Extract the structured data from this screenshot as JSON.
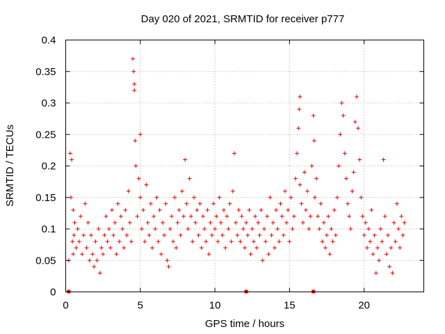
{
  "chart_data": {
    "type": "scatter",
    "title": "Day 020 of 2021, SRMTID for receiver p777",
    "xlabel": "GPS time / hours",
    "ylabel": "SRMTID / TECUs",
    "xlim": [
      0,
      24
    ],
    "ylim": [
      0,
      0.4
    ],
    "x_ticks": [
      0,
      5,
      10,
      15,
      20
    ],
    "x_tick_labels": [
      "0",
      "5",
      "10",
      "15",
      "20"
    ],
    "y_ticks": [
      0,
      0.05,
      0.1,
      0.15,
      0.2,
      0.25,
      0.3,
      0.35,
      0.4
    ],
    "y_tick_labels": [
      "0",
      "0.05",
      "0.1",
      "0.15",
      "0.2",
      "0.25",
      "0.3",
      "0.35",
      "0.4"
    ],
    "grid": true,
    "marker": "+",
    "color": "#e00000",
    "baseline_markers_x": [
      0.2,
      12.1,
      16.6
    ],
    "series": [
      {
        "name": "SRMTID",
        "x": [
          0.2,
          0.3,
          0.35,
          0.4,
          0.45,
          0.5,
          0.5,
          0.55,
          0.6,
          0.7,
          0.8,
          0.9,
          1.0,
          1.1,
          1.2,
          1.3,
          1.4,
          1.5,
          1.6,
          1.7,
          1.8,
          1.9,
          2.0,
          2.1,
          2.2,
          2.3,
          2.4,
          2.5,
          2.6,
          2.7,
          2.8,
          2.9,
          3.0,
          3.1,
          3.2,
          3.3,
          3.4,
          3.5,
          3.6,
          3.7,
          3.8,
          3.9,
          4.0,
          4.1,
          4.2,
          4.3,
          4.4,
          4.5,
          4.55,
          4.6,
          4.6,
          4.65,
          4.7,
          4.8,
          4.9,
          5.0,
          5.0,
          5.1,
          5.2,
          5.3,
          5.4,
          5.5,
          5.6,
          5.7,
          5.8,
          5.9,
          6.0,
          6.1,
          6.2,
          6.3,
          6.4,
          6.5,
          6.6,
          6.7,
          6.8,
          6.9,
          7.0,
          7.1,
          7.2,
          7.3,
          7.4,
          7.5,
          7.6,
          7.7,
          7.8,
          7.9,
          8.0,
          8.1,
          8.2,
          8.3,
          8.4,
          8.5,
          8.6,
          8.7,
          8.8,
          8.9,
          9.0,
          9.1,
          9.2,
          9.3,
          9.4,
          9.5,
          9.6,
          9.7,
          9.8,
          9.9,
          10.0,
          10.1,
          10.2,
          10.3,
          10.4,
          10.5,
          10.6,
          10.7,
          10.8,
          10.9,
          11.0,
          11.1,
          11.2,
          11.3,
          11.4,
          11.5,
          11.6,
          11.7,
          11.8,
          11.9,
          12.0,
          12.1,
          12.2,
          12.3,
          12.4,
          12.5,
          12.6,
          12.7,
          12.8,
          12.9,
          13.0,
          13.1,
          13.2,
          13.3,
          13.4,
          13.5,
          13.6,
          13.7,
          13.8,
          13.9,
          14.0,
          14.1,
          14.2,
          14.3,
          14.4,
          14.5,
          14.6,
          14.7,
          14.8,
          14.9,
          15.0,
          15.1,
          15.2,
          15.3,
          15.4,
          15.5,
          15.6,
          15.65,
          15.7,
          15.7,
          15.8,
          15.9,
          16.0,
          16.1,
          16.2,
          16.3,
          16.4,
          16.5,
          16.6,
          16.65,
          16.7,
          16.8,
          16.9,
          17.0,
          17.1,
          17.2,
          17.3,
          17.4,
          17.5,
          17.6,
          17.7,
          17.8,
          17.9,
          18.0,
          18.1,
          18.2,
          18.3,
          18.4,
          18.5,
          18.6,
          18.7,
          18.8,
          18.9,
          19.0,
          19.1,
          19.2,
          19.3,
          19.4,
          19.5,
          19.6,
          19.7,
          19.8,
          19.9,
          20.0,
          20.1,
          20.2,
          20.3,
          20.4,
          20.5,
          20.6,
          20.7,
          20.8,
          20.9,
          21.0,
          21.1,
          21.2,
          21.3,
          21.4,
          21.5,
          21.6,
          21.7,
          21.8,
          21.9,
          22.0,
          22.1,
          22.2,
          22.3,
          22.4,
          22.5,
          22.6,
          22.7
        ],
        "y": [
          0.05,
          0.22,
          0.15,
          0.21,
          0.08,
          0.06,
          0.13,
          0.09,
          0.11,
          0.07,
          0.1,
          0.08,
          0.12,
          0.06,
          0.09,
          0.14,
          0.07,
          0.11,
          0.05,
          0.09,
          0.06,
          0.04,
          0.08,
          0.05,
          0.1,
          0.03,
          0.07,
          0.06,
          0.09,
          0.12,
          0.08,
          0.1,
          0.07,
          0.13,
          0.09,
          0.11,
          0.06,
          0.14,
          0.08,
          0.12,
          0.1,
          0.07,
          0.13,
          0.09,
          0.16,
          0.11,
          0.08,
          0.37,
          0.35,
          0.33,
          0.32,
          0.24,
          0.2,
          0.12,
          0.18,
          0.25,
          0.15,
          0.1,
          0.13,
          0.08,
          0.17,
          0.11,
          0.09,
          0.14,
          0.07,
          0.12,
          0.1,
          0.15,
          0.08,
          0.13,
          0.06,
          0.11,
          0.09,
          0.14,
          0.05,
          0.04,
          0.1,
          0.12,
          0.08,
          0.15,
          0.07,
          0.11,
          0.13,
          0.09,
          0.16,
          0.12,
          0.21,
          0.14,
          0.1,
          0.18,
          0.12,
          0.08,
          0.15,
          0.11,
          0.13,
          0.09,
          0.14,
          0.07,
          0.12,
          0.1,
          0.08,
          0.13,
          0.06,
          0.11,
          0.09,
          0.14,
          0.1,
          0.12,
          0.08,
          0.15,
          0.11,
          0.09,
          0.13,
          0.07,
          0.12,
          0.1,
          0.14,
          0.08,
          0.16,
          0.22,
          0.11,
          0.09,
          0.13,
          0.08,
          0.12,
          0.1,
          0.07,
          0.11,
          0.09,
          0.13,
          0.06,
          0.1,
          0.08,
          0.12,
          0.07,
          0.11,
          0.09,
          0.13,
          0.05,
          0.1,
          0.08,
          0.12,
          0.06,
          0.15,
          0.09,
          0.11,
          0.07,
          0.13,
          0.1,
          0.08,
          0.14,
          0.12,
          0.09,
          0.16,
          0.11,
          0.13,
          0.08,
          0.15,
          0.1,
          0.12,
          0.18,
          0.22,
          0.26,
          0.29,
          0.31,
          0.17,
          0.14,
          0.11,
          0.19,
          0.13,
          0.16,
          0.1,
          0.12,
          0.2,
          0.28,
          0.24,
          0.15,
          0.18,
          0.12,
          0.1,
          0.14,
          0.08,
          0.11,
          0.07,
          0.09,
          0.12,
          0.06,
          0.1,
          0.08,
          0.13,
          0.09,
          0.15,
          0.2,
          0.25,
          0.3,
          0.28,
          0.22,
          0.18,
          0.14,
          0.12,
          0.1,
          0.16,
          0.19,
          0.27,
          0.31,
          0.26,
          0.21,
          0.15,
          0.12,
          0.09,
          0.11,
          0.07,
          0.1,
          0.08,
          0.13,
          0.06,
          0.09,
          0.03,
          0.07,
          0.05,
          0.1,
          0.08,
          0.21,
          0.12,
          0.06,
          0.09,
          0.04,
          0.07,
          0.03,
          0.11,
          0.08,
          0.14,
          0.1,
          0.07,
          0.12,
          0.09,
          0.11
        ]
      }
    ]
  }
}
